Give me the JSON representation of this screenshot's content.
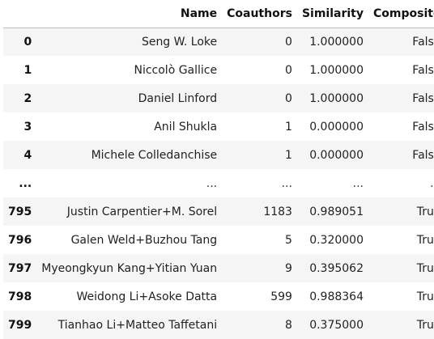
{
  "table": {
    "headers": {
      "index": "",
      "name": "Name",
      "coauthors": "Coauthors",
      "similarity": "Similarity",
      "composite": "Composite"
    },
    "rows": [
      {
        "index": "0",
        "name": "Seng W. Loke",
        "coauthors": "0",
        "similarity": "1.000000",
        "composite": "False"
      },
      {
        "index": "1",
        "name": "Niccolò Gallice",
        "coauthors": "0",
        "similarity": "1.000000",
        "composite": "False"
      },
      {
        "index": "2",
        "name": "Daniel Linford",
        "coauthors": "0",
        "similarity": "1.000000",
        "composite": "False"
      },
      {
        "index": "3",
        "name": "Anil Shukla",
        "coauthors": "1",
        "similarity": "0.000000",
        "composite": "False"
      },
      {
        "index": "4",
        "name": "Michele Colledanchise",
        "coauthors": "1",
        "similarity": "0.000000",
        "composite": "False"
      },
      {
        "index": "...",
        "name": "...",
        "coauthors": "...",
        "similarity": "...",
        "composite": "..."
      },
      {
        "index": "795",
        "name": "Justin Carpentier+M. Sorel",
        "coauthors": "1183",
        "similarity": "0.989051",
        "composite": "True"
      },
      {
        "index": "796",
        "name": "Galen Weld+Buzhou Tang",
        "coauthors": "5",
        "similarity": "0.320000",
        "composite": "True"
      },
      {
        "index": "797",
        "name": "Myeongkyun Kang+Yitian Yuan",
        "coauthors": "9",
        "similarity": "0.395062",
        "composite": "True"
      },
      {
        "index": "798",
        "name": "Weidong Li+Asoke Datta",
        "coauthors": "599",
        "similarity": "0.988364",
        "composite": "True"
      },
      {
        "index": "799",
        "name": "Tianhao Li+Matteo Taffetani",
        "coauthors": "8",
        "similarity": "0.375000",
        "composite": "True"
      }
    ]
  }
}
